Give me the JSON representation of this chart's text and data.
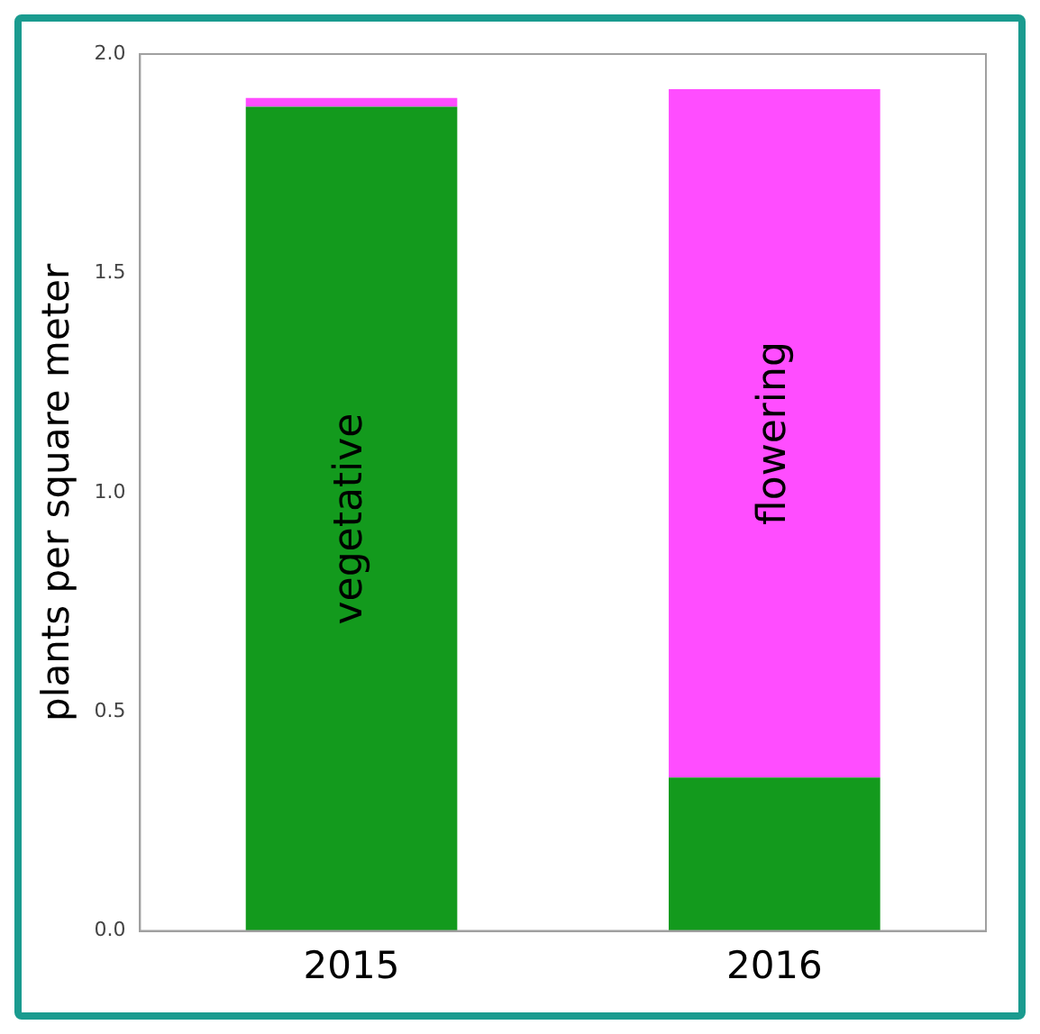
{
  "chart_data": {
    "type": "bar",
    "stacked": true,
    "ylabel": "plants per square meter",
    "categories": [
      "2015",
      "2016"
    ],
    "series": [
      {
        "name": "vegetative",
        "color": "#139a1d",
        "values": [
          1.88,
          0.35
        ]
      },
      {
        "name": "flowering",
        "color": "#ff4dff",
        "values": [
          0.02,
          1.57
        ]
      }
    ],
    "ylim": [
      0,
      2
    ],
    "yticks": [
      {
        "value": 0,
        "label": "0.0"
      },
      {
        "value": 0.5,
        "label": "0.5"
      },
      {
        "value": 1,
        "label": "1.0"
      },
      {
        "value": 1.5,
        "label": "1.5"
      },
      {
        "value": 2,
        "label": "2.0"
      }
    ],
    "grid": false,
    "legend": false
  }
}
